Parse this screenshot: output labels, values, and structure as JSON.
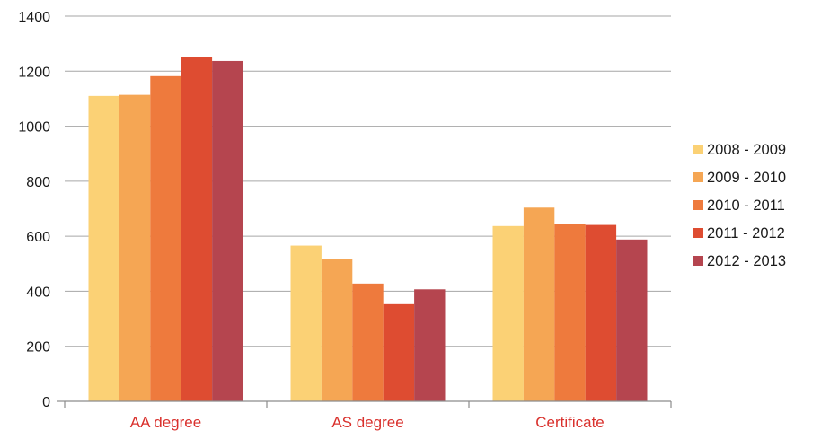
{
  "chart_data": {
    "type": "bar",
    "categories": [
      "AA degree",
      "AS degree",
      "Certificate"
    ],
    "series": [
      {
        "name": "2008 - 2009",
        "color": "#fbd175",
        "values": [
          1110,
          566,
          637
        ]
      },
      {
        "name": "2009 - 2010",
        "color": "#f5a654",
        "values": [
          1114,
          518,
          704
        ]
      },
      {
        "name": "2010 - 2011",
        "color": "#ee7a3d",
        "values": [
          1182,
          428,
          645
        ]
      },
      {
        "name": "2011 - 2012",
        "color": "#de4c31",
        "values": [
          1253,
          353,
          641
        ]
      },
      {
        "name": "2012 - 2013",
        "color": "#b5454f",
        "values": [
          1237,
          407,
          588
        ]
      }
    ],
    "title": "",
    "xlabel": "",
    "ylabel": "",
    "ylim": [
      0,
      1400
    ],
    "yticks": [
      "0",
      "200",
      "400",
      "600",
      "800",
      "1000",
      "1200",
      "1400"
    ],
    "grid": true,
    "legend_position": "right",
    "category_label_color": "#d9302c",
    "gridline_color": "#a6a6a6"
  }
}
